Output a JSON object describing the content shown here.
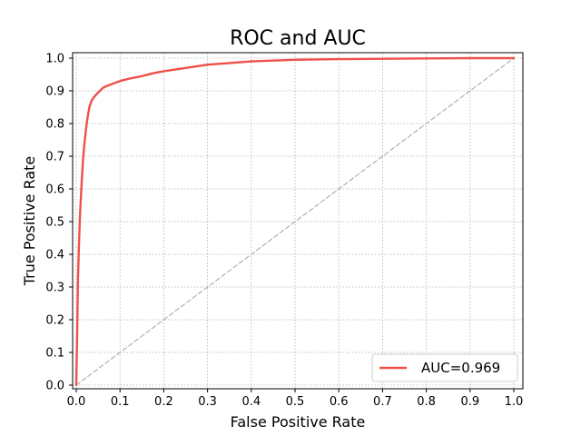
{
  "chart_data": {
    "type": "line",
    "title": "ROC and AUC",
    "xlabel": "False Positive Rate",
    "ylabel": "True Positive Rate",
    "xlim": [
      0.0,
      1.0
    ],
    "ylim": [
      0.0,
      1.0
    ],
    "xticks": [
      "0.0",
      "0.1",
      "0.2",
      "0.3",
      "0.4",
      "0.5",
      "0.6",
      "0.7",
      "0.8",
      "0.9",
      "1.0"
    ],
    "yticks": [
      "0.0",
      "0.1",
      "0.2",
      "0.3",
      "0.4",
      "0.5",
      "0.6",
      "0.7",
      "0.8",
      "0.9",
      "1.0"
    ],
    "grid": true,
    "legend_position": "lower-right",
    "series": [
      {
        "name": "AUC=0.969",
        "color": "#f0504a",
        "style": "solid",
        "x": [
          0.0,
          0.002,
          0.004,
          0.006,
          0.008,
          0.01,
          0.012,
          0.015,
          0.018,
          0.022,
          0.026,
          0.03,
          0.035,
          0.04,
          0.05,
          0.06,
          0.07,
          0.08,
          0.1,
          0.12,
          0.15,
          0.18,
          0.2,
          0.25,
          0.3,
          0.35,
          0.4,
          0.5,
          0.6,
          0.7,
          0.8,
          0.9,
          1.0
        ],
        "y": [
          0.0,
          0.15,
          0.33,
          0.42,
          0.5,
          0.56,
          0.61,
          0.68,
          0.73,
          0.78,
          0.82,
          0.85,
          0.87,
          0.88,
          0.895,
          0.908,
          0.915,
          0.92,
          0.93,
          0.937,
          0.945,
          0.955,
          0.96,
          0.97,
          0.98,
          0.985,
          0.99,
          0.995,
          0.997,
          0.998,
          0.999,
          1.0,
          1.0
        ]
      },
      {
        "name": "",
        "color": "#aaaaaa",
        "style": "dashed",
        "x": [
          0.0,
          1.0
        ],
        "y": [
          0.0,
          1.0
        ]
      }
    ],
    "legend": [
      {
        "label": "AUC=0.969",
        "color": "#f0504a"
      }
    ]
  }
}
